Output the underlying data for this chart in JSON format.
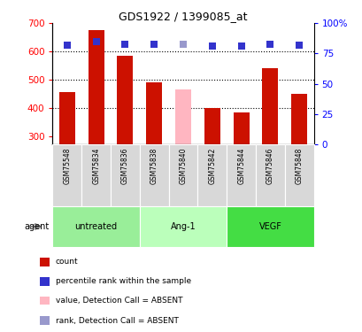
{
  "title": "GDS1922 / 1399085_at",
  "samples": [
    "GSM75548",
    "GSM75834",
    "GSM75836",
    "GSM75838",
    "GSM75840",
    "GSM75842",
    "GSM75844",
    "GSM75846",
    "GSM75848"
  ],
  "bar_values": [
    455,
    675,
    585,
    490,
    465,
    398,
    383,
    540,
    450
  ],
  "bar_colors": [
    "#cc1100",
    "#cc1100",
    "#cc1100",
    "#cc1100",
    "#ffb6c1",
    "#cc1100",
    "#cc1100",
    "#cc1100",
    "#cc1100"
  ],
  "dot_values": [
    82,
    85,
    83,
    83,
    83,
    81,
    81,
    83,
    82
  ],
  "dot_colors": [
    "#3333cc",
    "#3333cc",
    "#3333cc",
    "#3333cc",
    "#9999cc",
    "#3333cc",
    "#3333cc",
    "#3333cc",
    "#3333cc"
  ],
  "ylim_left": [
    270,
    700
  ],
  "ylim_right": [
    0,
    100
  ],
  "yticks_left": [
    300,
    400,
    500,
    600,
    700
  ],
  "yticks_right": [
    0,
    25,
    50,
    75,
    100
  ],
  "ytick_labels_right": [
    "0",
    "25",
    "50",
    "75",
    "100%"
  ],
  "groups": [
    {
      "label": "untreated",
      "indices": [
        0,
        1,
        2
      ],
      "color": "#99ee99"
    },
    {
      "label": "Ang-1",
      "indices": [
        3,
        4,
        5
      ],
      "color": "#bbffbb"
    },
    {
      "label": "VEGF",
      "indices": [
        6,
        7,
        8
      ],
      "color": "#44dd44"
    }
  ],
  "agent_label": "agent",
  "legend": [
    {
      "label": "count",
      "color": "#cc1100"
    },
    {
      "label": "percentile rank within the sample",
      "color": "#3333cc"
    },
    {
      "label": "value, Detection Call = ABSENT",
      "color": "#ffb6c1"
    },
    {
      "label": "rank, Detection Call = ABSENT",
      "color": "#9999cc"
    }
  ],
  "background_color": "#ffffff",
  "bar_width": 0.55,
  "dot_size": 40,
  "base_value": 270,
  "grid_dotted_lines": [
    400,
    500,
    600
  ]
}
